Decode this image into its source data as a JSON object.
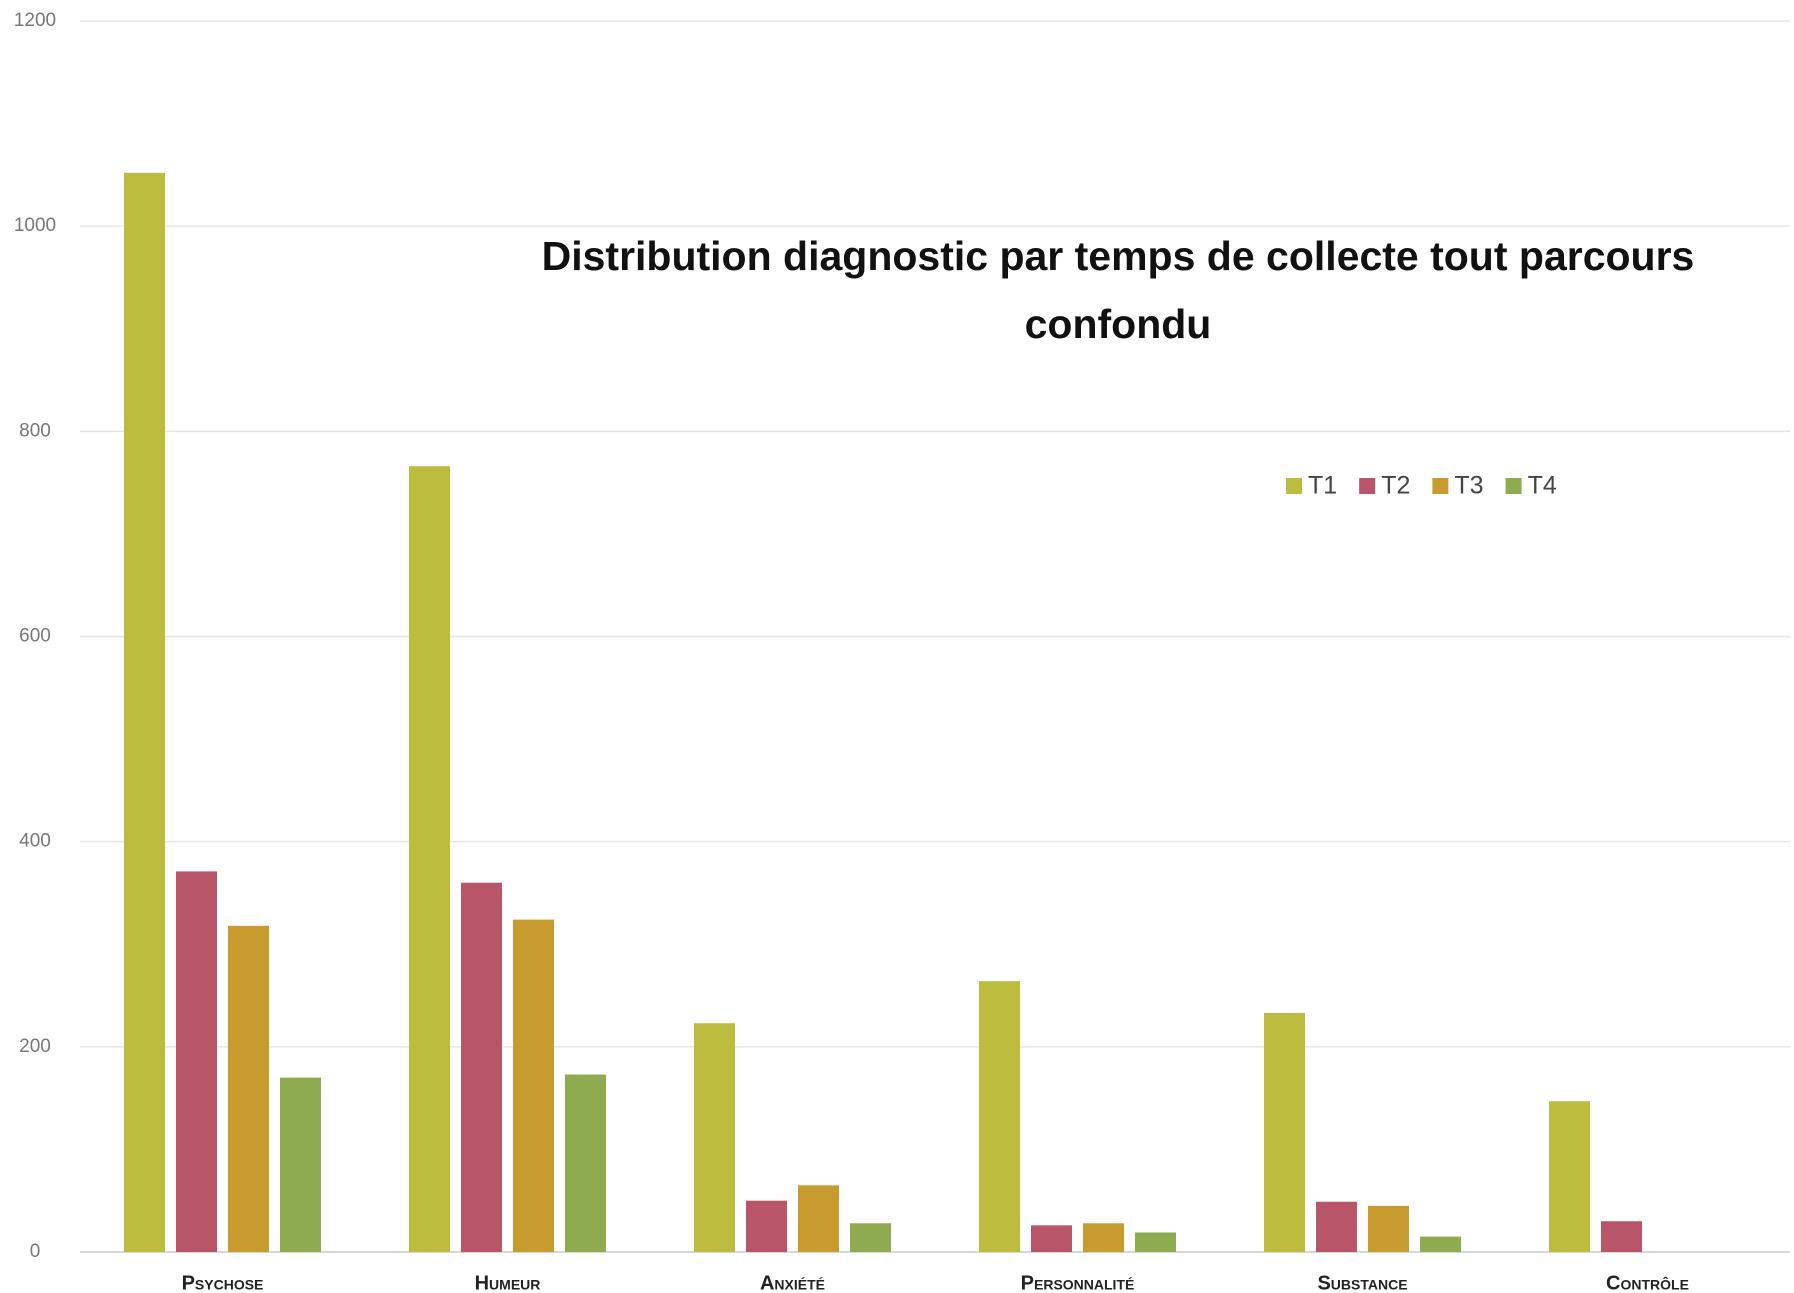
{
  "chart_data": {
    "type": "bar",
    "title": "Distribution diagnostic par temps de collecte tout parcours confondu",
    "categories": [
      "Psychose",
      "Humeur",
      "Anxiété",
      "Personnalité",
      "Substance",
      "Contrôle"
    ],
    "series": [
      {
        "name": "T1",
        "color": "#bcbd3f",
        "values": [
          1052,
          766,
          223,
          264,
          233,
          147
        ]
      },
      {
        "name": "T2",
        "color": "#b85568",
        "values": [
          371,
          360,
          50,
          26,
          49,
          30
        ]
      },
      {
        "name": "T3",
        "color": "#c89b2e",
        "values": [
          318,
          324,
          65,
          28,
          45,
          0
        ]
      },
      {
        "name": "T4",
        "color": "#8fab4f",
        "values": [
          170,
          173,
          28,
          19,
          15,
          0
        ]
      }
    ],
    "ylim": [
      0,
      1200
    ],
    "yticks": [
      0,
      200,
      400,
      600,
      800,
      1000,
      1200
    ],
    "grid": true,
    "legend": "top-right"
  }
}
